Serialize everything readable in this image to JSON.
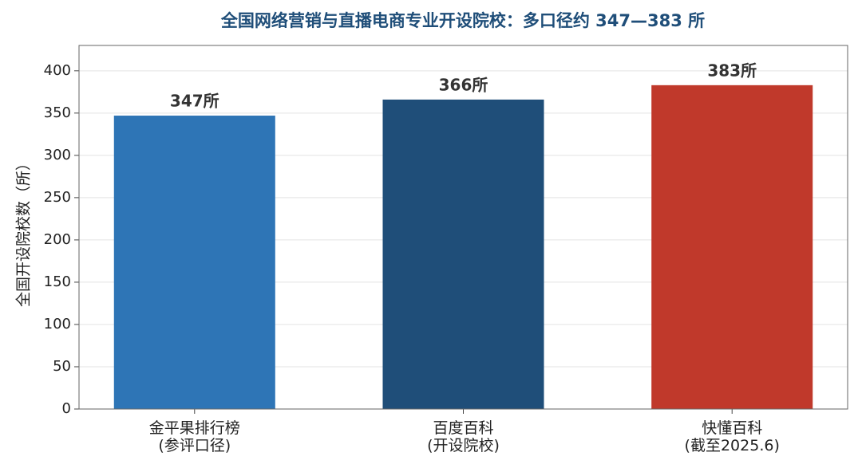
{
  "chart_data": {
    "type": "bar",
    "title": "全国网络营销与直播电商专业开设院校：多口径约 347—383 所",
    "y_label": "全国开设院校数（所）",
    "categories": [
      "金平果排行榜\n(参评口径)",
      "百度百科\n(开设院校)",
      "快懂百科\n(截至2025.6)"
    ],
    "values": [
      347,
      366,
      383
    ],
    "value_labels": [
      "347所",
      "366所",
      "383所"
    ],
    "colors": [
      "#2e75b6",
      "#1f4e79",
      "#c0392b"
    ],
    "ylim": [
      0,
      430
    ],
    "yticks": [
      0,
      50,
      100,
      150,
      200,
      250,
      300,
      350,
      400
    ],
    "grid": true
  }
}
